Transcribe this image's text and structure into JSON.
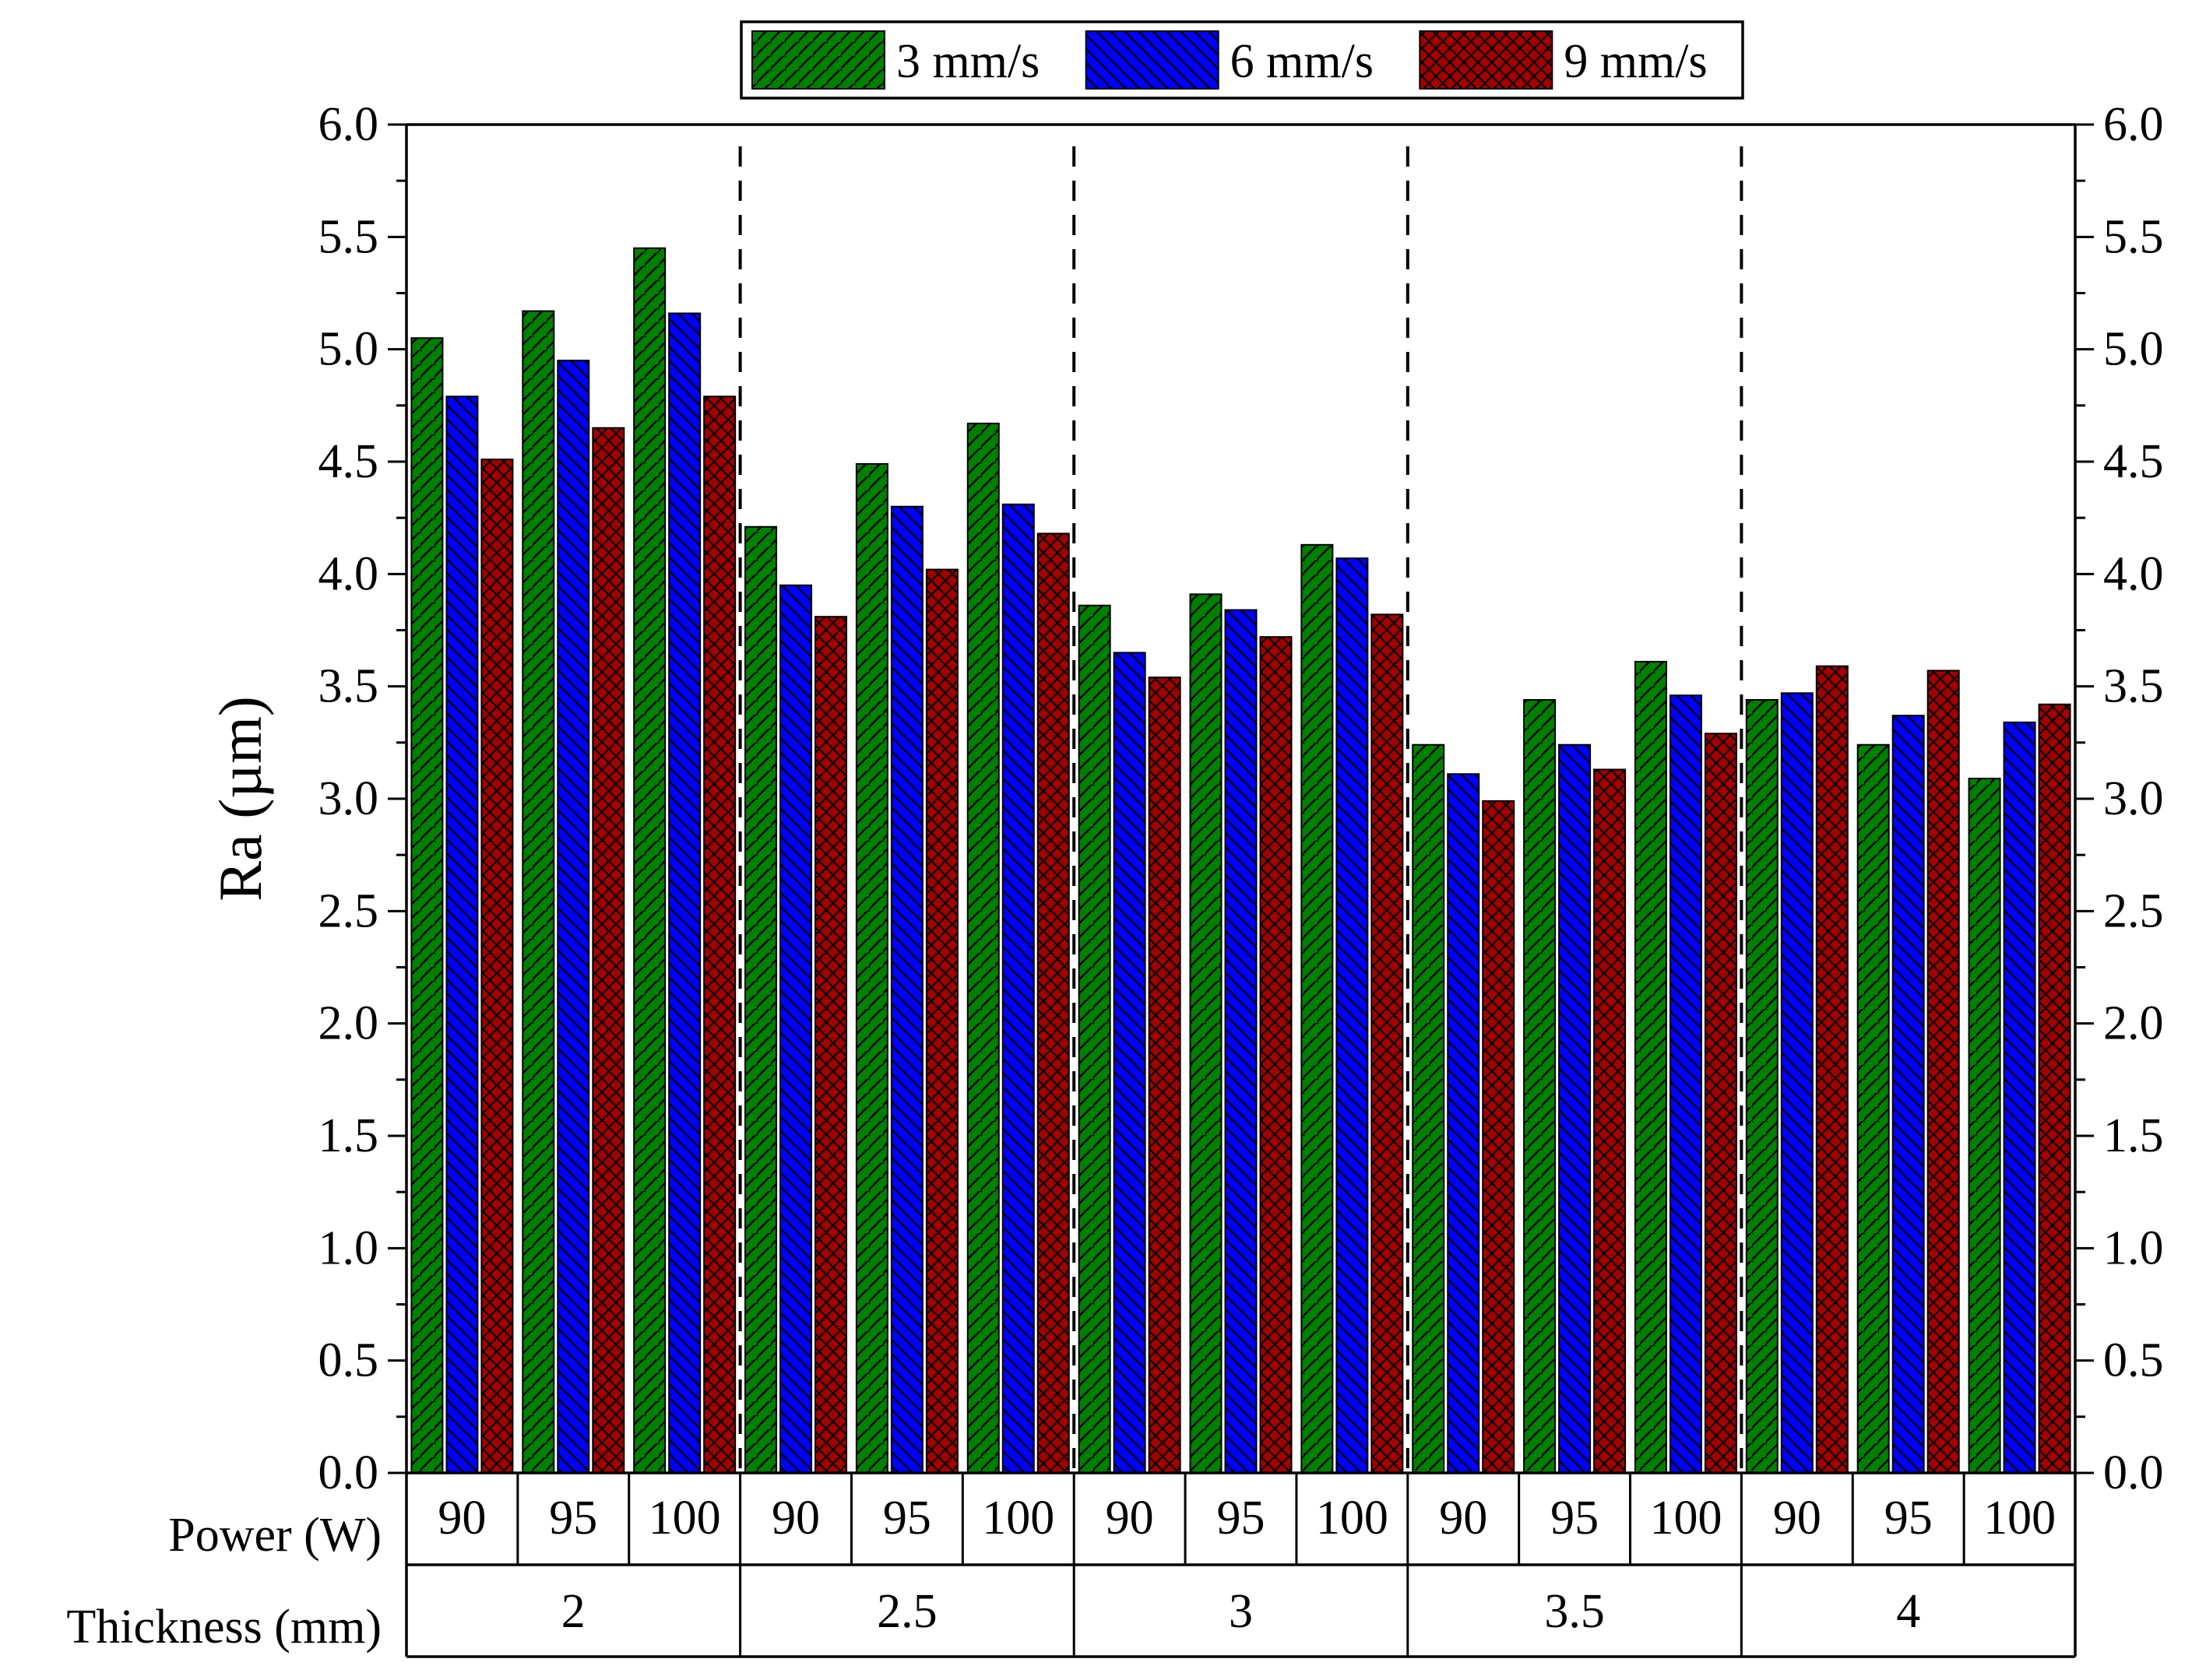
{
  "chart_data": {
    "type": "bar",
    "ylabel": "Ra (µm)",
    "ylim": [
      0,
      6
    ],
    "yticks": [
      "0.0",
      "0.5",
      "1.0",
      "1.5",
      "2.0",
      "2.5",
      "3.0",
      "3.5",
      "4.0",
      "4.5",
      "5.0",
      "5.5",
      "6.0"
    ],
    "right_axis_mirrored": true,
    "grid": false,
    "legend_position": "top-center",
    "row_labels": {
      "power": "Power (W)",
      "thickness": "Thickness (mm)"
    },
    "thickness_groups": [
      "2",
      "2.5",
      "3",
      "3.5",
      "4"
    ],
    "powers": [
      "90",
      "95",
      "100"
    ],
    "series": [
      {
        "name": "3 mm/s",
        "color": "#008000",
        "hatch": "forward-diagonal",
        "values": [
          5.05,
          5.17,
          5.45,
          4.21,
          4.49,
          4.67,
          3.86,
          3.91,
          4.13,
          3.24,
          3.44,
          3.61,
          3.44,
          3.24,
          3.09
        ]
      },
      {
        "name": "6 mm/s",
        "color": "#0000ff",
        "hatch": "back-diagonal",
        "values": [
          4.79,
          4.95,
          5.16,
          3.95,
          4.3,
          4.31,
          3.65,
          3.84,
          4.07,
          3.11,
          3.24,
          3.46,
          3.47,
          3.37,
          3.34
        ]
      },
      {
        "name": "9 mm/s",
        "color": "#a40000",
        "hatch": "cross",
        "values": [
          4.51,
          4.65,
          4.79,
          3.81,
          4.02,
          4.18,
          3.54,
          3.72,
          3.82,
          2.99,
          3.13,
          3.29,
          3.59,
          3.57,
          3.42
        ]
      }
    ]
  }
}
